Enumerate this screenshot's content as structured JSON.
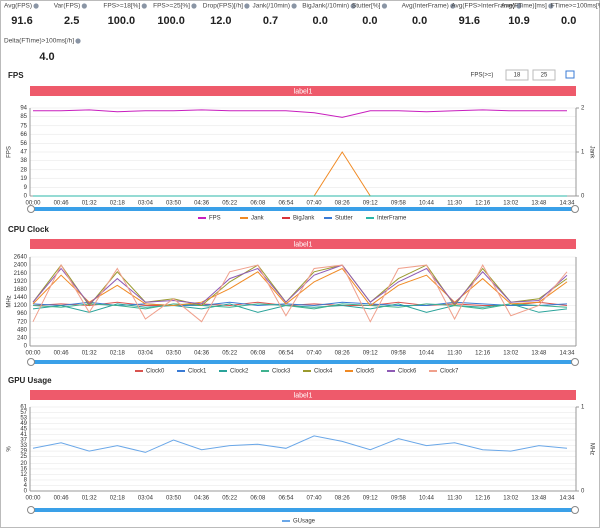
{
  "stats": [
    {
      "label": "Avg(FPS)",
      "value": "91.6"
    },
    {
      "label": "Var(FPS)",
      "value": "2.5"
    },
    {
      "label": "FPS>=18[%]",
      "value": "100.0"
    },
    {
      "label": "FPS>=25[%]",
      "value": "100.0"
    },
    {
      "label": "Drop(FPS)[/h]",
      "value": "12.0"
    },
    {
      "label": "Jank(/10min)",
      "value": "0.7"
    },
    {
      "label": "BigJank(/10min)",
      "value": "0.0"
    },
    {
      "label": "Stutter[%]",
      "value": "0.0"
    },
    {
      "label": "Avg(InterFrame)",
      "value": "0.0"
    },
    {
      "label": "Avg(FPS>InterFrame)",
      "value": "91.6"
    },
    {
      "label": "Avg(FTime)[ms]",
      "value": "10.9"
    },
    {
      "label": "FTime>=100ms[%]",
      "value": "0.0"
    },
    {
      "label": "Delta(FTime)>100ms[/h]",
      "value": "4.0"
    }
  ],
  "threshold_label": "FPS(>=)",
  "thresholds": [
    18,
    25
  ],
  "chart_data": [
    {
      "type": "line",
      "title": "FPS",
      "banner": "label1",
      "ylabel": "FPS",
      "y2label": "Jank",
      "categories": [
        "00:00",
        "00:46",
        "01:32",
        "02:18",
        "03:04",
        "03:50",
        "04:36",
        "05:22",
        "06:08",
        "06:54",
        "07:40",
        "08:26",
        "09:12",
        "09:58",
        "10:44",
        "11:30",
        "12:16",
        "13:02",
        "13:48",
        "14:34"
      ],
      "ylim": [
        0,
        94
      ],
      "yticks": [
        0,
        9,
        19,
        28,
        38,
        47,
        56,
        66,
        75,
        85,
        94
      ],
      "y2lim": [
        0,
        2
      ],
      "y2ticks": [
        0,
        1,
        2
      ],
      "series": [
        {
          "name": "FPS",
          "color": "#c81ebe",
          "values": [
            91,
            91,
            92,
            90,
            91,
            91,
            92,
            91,
            91,
            91,
            89,
            84,
            91,
            91,
            90,
            91,
            92,
            91,
            91,
            91
          ]
        },
        {
          "name": "Jank",
          "color": "#f08a24",
          "axis": "y2",
          "values": [
            0,
            0,
            0,
            0,
            0,
            0,
            0,
            0,
            0,
            0,
            0,
            1,
            0,
            0,
            0,
            0,
            0,
            0,
            0,
            0
          ]
        },
        {
          "name": "BigJank",
          "color": "#d9343a",
          "axis": "y2",
          "values": [
            0,
            0,
            0,
            0,
            0,
            0,
            0,
            0,
            0,
            0,
            0,
            0,
            0,
            0,
            0,
            0,
            0,
            0,
            0,
            0
          ]
        },
        {
          "name": "Stutter",
          "color": "#3a7bd5",
          "axis": "y2",
          "values": [
            0,
            0,
            0,
            0,
            0,
            0,
            0,
            0,
            0,
            0,
            0,
            0,
            0,
            0,
            0,
            0,
            0,
            0,
            0,
            0
          ]
        },
        {
          "name": "InterFrame",
          "color": "#2bb7a8",
          "axis": "y2",
          "values": [
            0,
            0,
            0,
            0,
            0,
            0,
            0,
            0,
            0,
            0,
            0,
            0,
            0,
            0,
            0,
            0,
            0,
            0,
            0,
            0
          ]
        }
      ]
    },
    {
      "type": "line",
      "title": "CPU Clock",
      "banner": "label1",
      "ylabel": "MHz",
      "categories": [
        "00:00",
        "00:46",
        "01:32",
        "02:18",
        "03:04",
        "03:50",
        "04:36",
        "05:22",
        "06:08",
        "06:54",
        "07:40",
        "08:26",
        "09:12",
        "09:58",
        "10:44",
        "11:30",
        "12:16",
        "13:02",
        "13:48",
        "14:34"
      ],
      "ylim": [
        0,
        2640
      ],
      "yticks": [
        0,
        240,
        480,
        720,
        960,
        1200,
        1440,
        1680,
        1920,
        2160,
        2400,
        2640
      ],
      "series": [
        {
          "name": "Clock0",
          "color": "#d9534f",
          "values": [
            1200,
            1250,
            1200,
            1300,
            1200,
            1200,
            1250,
            1200,
            1300,
            1200,
            1250,
            1200,
            1200,
            1300,
            1200,
            1250,
            1200,
            1200,
            1300,
            1200
          ]
        },
        {
          "name": "Clock1",
          "color": "#3a7bd5",
          "values": [
            1250,
            1200,
            1300,
            1200,
            1250,
            1200,
            1200,
            1300,
            1200,
            1250,
            1200,
            1300,
            1250,
            1200,
            1200,
            1300,
            1250,
            1200,
            1200,
            1250
          ]
        },
        {
          "name": "Clock2",
          "color": "#2aa39a",
          "values": [
            1100,
            1200,
            1000,
            1250,
            1150,
            1200,
            1100,
            1250,
            1000,
            1200,
            1150,
            1200,
            1100,
            1250,
            1000,
            1200,
            1150,
            1250,
            1000,
            1100
          ]
        },
        {
          "name": "Clock3",
          "color": "#3fb28f",
          "values": [
            1200,
            1150,
            1250,
            1200,
            1100,
            1250,
            1200,
            1150,
            1250,
            1200,
            1100,
            1250,
            1200,
            1150,
            1250,
            1200,
            1100,
            1250,
            1200,
            1150
          ]
        },
        {
          "name": "Clock4",
          "color": "#9a9a2e",
          "values": [
            1300,
            2400,
            1200,
            2200,
            1300,
            1400,
            1200,
            1900,
            2400,
            1300,
            2200,
            2400,
            1300,
            2000,
            2400,
            1200,
            2300,
            1300,
            1400,
            2000
          ]
        },
        {
          "name": "Clock5",
          "color": "#f08a24",
          "values": [
            1250,
            2100,
            1300,
            1800,
            1250,
            1200,
            1300,
            1700,
            2200,
            1250,
            1900,
            2300,
            1200,
            1800,
            2100,
            1300,
            2000,
            1250,
            1300,
            1900
          ]
        },
        {
          "name": "Clock6",
          "color": "#8e5bb5",
          "values": [
            1300,
            2300,
            1250,
            2000,
            1300,
            1350,
            1250,
            2000,
            2300,
            1300,
            2100,
            2400,
            1300,
            1900,
            2300,
            1250,
            2200,
            1300,
            1350,
            2100
          ]
        },
        {
          "name": "Clock7",
          "color": "#f0a08c",
          "values": [
            720,
            2400,
            1000,
            2300,
            800,
            1400,
            720,
            2200,
            2400,
            900,
            2300,
            2400,
            720,
            2300,
            2400,
            800,
            2400,
            900,
            1200,
            2200
          ]
        }
      ]
    },
    {
      "type": "line",
      "title": "GPU Usage",
      "banner": "label1",
      "ylabel": "%",
      "y2label": "MHz",
      "categories": [
        "00:00",
        "00:46",
        "01:32",
        "02:18",
        "03:04",
        "03:50",
        "04:36",
        "05:22",
        "06:08",
        "06:54",
        "07:40",
        "08:26",
        "09:12",
        "09:58",
        "10:44",
        "11:30",
        "12:16",
        "13:02",
        "13:48",
        "14:34"
      ],
      "ylim": [
        0,
        61
      ],
      "yticks": [
        0,
        4,
        8,
        12,
        16,
        20,
        25,
        29,
        33,
        37,
        41,
        45,
        49,
        53,
        57,
        61
      ],
      "y2lim": [
        0,
        1
      ],
      "y2ticks": [
        0,
        1
      ],
      "series": [
        {
          "name": "GUsage",
          "color": "#6aa7e8",
          "values": [
            31,
            35,
            29,
            33,
            28,
            37,
            30,
            33,
            34,
            31,
            40,
            36,
            30,
            38,
            33,
            35,
            30,
            29,
            33,
            31
          ]
        }
      ]
    }
  ]
}
